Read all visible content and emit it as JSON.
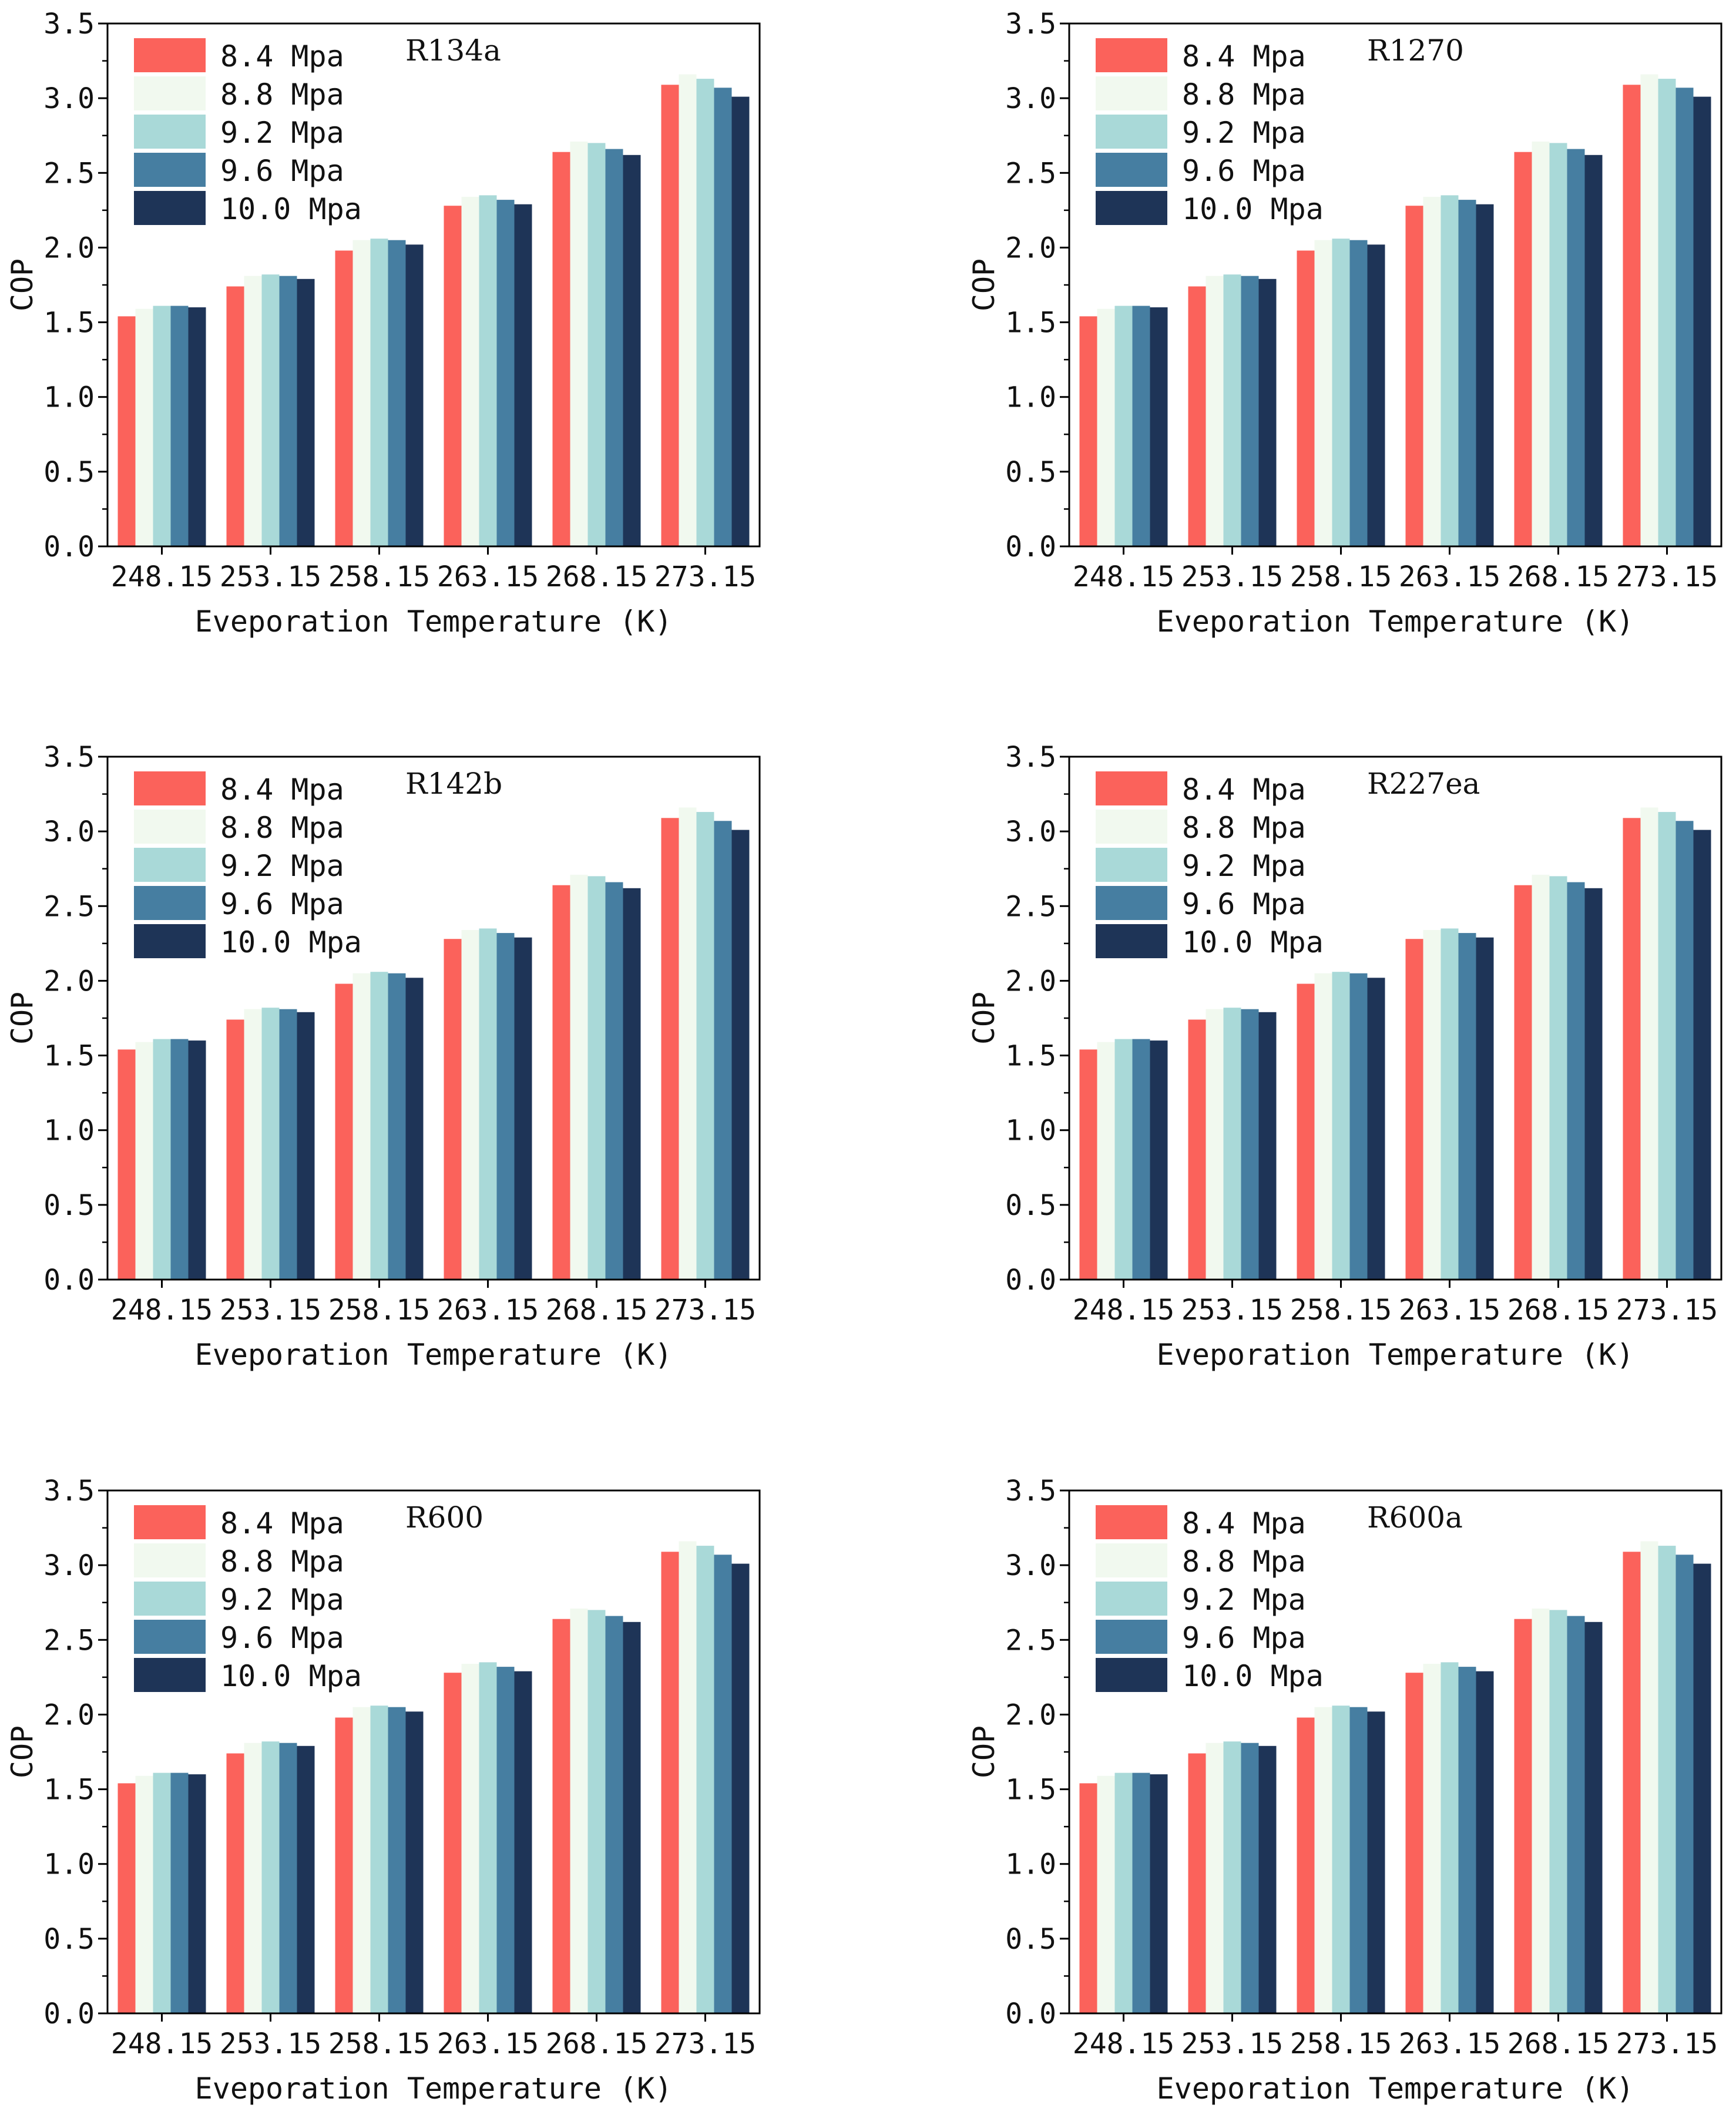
{
  "chart_data": [
    {
      "type": "bar",
      "title": "R134a",
      "categories": [
        "248.15",
        "253.15",
        "258.15",
        "263.15",
        "268.15",
        "273.15"
      ],
      "xlabel": "Eveporation Temperature (K)",
      "ylabel": "COP",
      "ylim": [
        0,
        3.5
      ],
      "yticks": [
        "0.0",
        "0.5",
        "1.0",
        "1.5",
        "2.0",
        "2.5",
        "3.0",
        "3.5"
      ],
      "legend_position": "top-left",
      "series": [
        {
          "name": "8.4 Mpa",
          "values": [
            1.54,
            1.74,
            1.98,
            2.28,
            2.64,
            3.09
          ]
        },
        {
          "name": "8.8 Mpa",
          "values": [
            1.59,
            1.81,
            2.05,
            2.34,
            2.71,
            3.16
          ]
        },
        {
          "name": "9.2 Mpa",
          "values": [
            1.61,
            1.82,
            2.06,
            2.35,
            2.7,
            3.13
          ]
        },
        {
          "name": "9.6 Mpa",
          "values": [
            1.61,
            1.81,
            2.05,
            2.32,
            2.66,
            3.07
          ]
        },
        {
          "name": "10.0 Mpa",
          "values": [
            1.6,
            1.79,
            2.02,
            2.29,
            2.62,
            3.01
          ]
        }
      ]
    },
    {
      "type": "bar",
      "title": "R1270",
      "categories": [
        "248.15",
        "253.15",
        "258.15",
        "263.15",
        "268.15",
        "273.15"
      ],
      "xlabel": "Eveporation Temperature (K)",
      "ylabel": "COP",
      "ylim": [
        0,
        3.5
      ],
      "yticks": [
        "0.0",
        "0.5",
        "1.0",
        "1.5",
        "2.0",
        "2.5",
        "3.0",
        "3.5"
      ],
      "legend_position": "top-left",
      "series": [
        {
          "name": "8.4 Mpa",
          "values": [
            1.54,
            1.74,
            1.98,
            2.28,
            2.64,
            3.09
          ]
        },
        {
          "name": "8.8 Mpa",
          "values": [
            1.59,
            1.81,
            2.05,
            2.34,
            2.71,
            3.16
          ]
        },
        {
          "name": "9.2 Mpa",
          "values": [
            1.61,
            1.82,
            2.06,
            2.35,
            2.7,
            3.13
          ]
        },
        {
          "name": "9.6 Mpa",
          "values": [
            1.61,
            1.81,
            2.05,
            2.32,
            2.66,
            3.07
          ]
        },
        {
          "name": "10.0 Mpa",
          "values": [
            1.6,
            1.79,
            2.02,
            2.29,
            2.62,
            3.01
          ]
        }
      ]
    },
    {
      "type": "bar",
      "title": "R142b",
      "categories": [
        "248.15",
        "253.15",
        "258.15",
        "263.15",
        "268.15",
        "273.15"
      ],
      "xlabel": "Eveporation Temperature (K)",
      "ylabel": "COP",
      "ylim": [
        0,
        3.5
      ],
      "yticks": [
        "0.0",
        "0.5",
        "1.0",
        "1.5",
        "2.0",
        "2.5",
        "3.0",
        "3.5"
      ],
      "legend_position": "top-left",
      "series": [
        {
          "name": "8.4 Mpa",
          "values": [
            1.54,
            1.74,
            1.98,
            2.28,
            2.64,
            3.09
          ]
        },
        {
          "name": "8.8 Mpa",
          "values": [
            1.59,
            1.81,
            2.05,
            2.34,
            2.71,
            3.16
          ]
        },
        {
          "name": "9.2 Mpa",
          "values": [
            1.61,
            1.82,
            2.06,
            2.35,
            2.7,
            3.13
          ]
        },
        {
          "name": "9.6 Mpa",
          "values": [
            1.61,
            1.81,
            2.05,
            2.32,
            2.66,
            3.07
          ]
        },
        {
          "name": "10.0 Mpa",
          "values": [
            1.6,
            1.79,
            2.02,
            2.29,
            2.62,
            3.01
          ]
        }
      ]
    },
    {
      "type": "bar",
      "title": "R227ea",
      "categories": [
        "248.15",
        "253.15",
        "258.15",
        "263.15",
        "268.15",
        "273.15"
      ],
      "xlabel": "Eveporation Temperature (K)",
      "ylabel": "COP",
      "ylim": [
        0,
        3.5
      ],
      "yticks": [
        "0.0",
        "0.5",
        "1.0",
        "1.5",
        "2.0",
        "2.5",
        "3.0",
        "3.5"
      ],
      "legend_position": "top-left",
      "series": [
        {
          "name": "8.4 Mpa",
          "values": [
            1.54,
            1.74,
            1.98,
            2.28,
            2.64,
            3.09
          ]
        },
        {
          "name": "8.8 Mpa",
          "values": [
            1.59,
            1.81,
            2.05,
            2.34,
            2.71,
            3.16
          ]
        },
        {
          "name": "9.2 Mpa",
          "values": [
            1.61,
            1.82,
            2.06,
            2.35,
            2.7,
            3.13
          ]
        },
        {
          "name": "9.6 Mpa",
          "values": [
            1.61,
            1.81,
            2.05,
            2.32,
            2.66,
            3.07
          ]
        },
        {
          "name": "10.0 Mpa",
          "values": [
            1.6,
            1.79,
            2.02,
            2.29,
            2.62,
            3.01
          ]
        }
      ]
    },
    {
      "type": "bar",
      "title": "R600",
      "categories": [
        "248.15",
        "253.15",
        "258.15",
        "263.15",
        "268.15",
        "273.15"
      ],
      "xlabel": "Eveporation Temperature (K)",
      "ylabel": "COP",
      "ylim": [
        0,
        3.5
      ],
      "yticks": [
        "0.0",
        "0.5",
        "1.0",
        "1.5",
        "2.0",
        "2.5",
        "3.0",
        "3.5"
      ],
      "legend_position": "top-left",
      "series": [
        {
          "name": "8.4 Mpa",
          "values": [
            1.54,
            1.74,
            1.98,
            2.28,
            2.64,
            3.09
          ]
        },
        {
          "name": "8.8 Mpa",
          "values": [
            1.59,
            1.81,
            2.05,
            2.34,
            2.71,
            3.16
          ]
        },
        {
          "name": "9.2 Mpa",
          "values": [
            1.61,
            1.82,
            2.06,
            2.35,
            2.7,
            3.13
          ]
        },
        {
          "name": "9.6 Mpa",
          "values": [
            1.61,
            1.81,
            2.05,
            2.32,
            2.66,
            3.07
          ]
        },
        {
          "name": "10.0 Mpa",
          "values": [
            1.6,
            1.79,
            2.02,
            2.29,
            2.62,
            3.01
          ]
        }
      ]
    },
    {
      "type": "bar",
      "title": "R600a",
      "categories": [
        "248.15",
        "253.15",
        "258.15",
        "263.15",
        "268.15",
        "273.15"
      ],
      "xlabel": "Eveporation Temperature (K)",
      "ylabel": "COP",
      "ylim": [
        0,
        3.5
      ],
      "yticks": [
        "0.0",
        "0.5",
        "1.0",
        "1.5",
        "2.0",
        "2.5",
        "3.0",
        "3.5"
      ],
      "legend_position": "top-left",
      "series": [
        {
          "name": "8.4 Mpa",
          "values": [
            1.54,
            1.74,
            1.98,
            2.28,
            2.64,
            3.09
          ]
        },
        {
          "name": "8.8 Mpa",
          "values": [
            1.59,
            1.81,
            2.05,
            2.34,
            2.71,
            3.16
          ]
        },
        {
          "name": "9.2 Mpa",
          "values": [
            1.61,
            1.82,
            2.06,
            2.35,
            2.7,
            3.13
          ]
        },
        {
          "name": "9.6 Mpa",
          "values": [
            1.61,
            1.81,
            2.05,
            2.32,
            2.66,
            3.07
          ]
        },
        {
          "name": "10.0 Mpa",
          "values": [
            1.6,
            1.79,
            2.02,
            2.29,
            2.62,
            3.01
          ]
        }
      ]
    }
  ],
  "colors": {
    "series": [
      "#fb625b",
      "#f1f9ef",
      "#a9d9d8",
      "#467ea1",
      "#1e3457"
    ],
    "axis": "#000000",
    "text": "#111111"
  }
}
